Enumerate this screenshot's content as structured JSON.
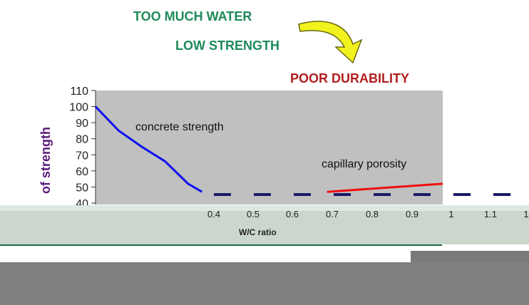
{
  "headlines": {
    "too_much_water": "TOO MUCH WATER",
    "low_strength": "LOW STRENGTH",
    "poor_durability": "POOR DURABILITY"
  },
  "colors": {
    "headline_green": "#1e8a5a",
    "headline_red": "#b01e1e",
    "arrow_yellow": "#f2f21e",
    "plot_bg": "#c0c0c0",
    "strength_line": "#1010ee",
    "porosity_line": "#ee1010",
    "ylabel": "#5a1a7a",
    "dash": "#1a1a66"
  },
  "icons": {
    "arrow": "curved-arrow-icon"
  },
  "chart_data": {
    "type": "line",
    "title": "",
    "xlabel": "W/C ratio",
    "ylabel": "of strength",
    "ylim": [
      40,
      110
    ],
    "xlim": [
      0.25,
      1.0
    ],
    "yticks": [
      "110",
      "100",
      "90",
      "80",
      "70",
      "60",
      "50",
      "40"
    ],
    "xticks": [
      "0.4",
      "0.5",
      "0.6",
      "0.7",
      "0.8",
      "0.9",
      "1",
      "1.1",
      "1"
    ],
    "grid": false,
    "series": [
      {
        "name": "concrete strength",
        "x": [
          0.25,
          0.3,
          0.35,
          0.4,
          0.45,
          0.48
        ],
        "y": [
          100,
          85,
          75,
          66,
          52,
          47
        ]
      },
      {
        "name": "capillary porosity",
        "x": [
          0.75,
          0.9,
          1.0
        ],
        "y": [
          47,
          50,
          52
        ]
      }
    ]
  }
}
